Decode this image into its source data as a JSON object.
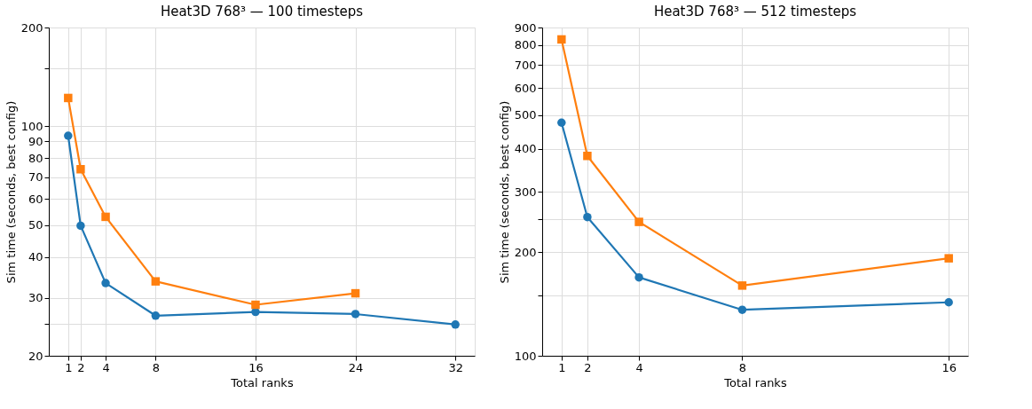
{
  "chart_data": [
    {
      "type": "line",
      "title": "Heat3D 768³ — 100 timesteps",
      "xlabel": "Total ranks",
      "ylabel": "Sim time (seconds, best config)",
      "log": "y",
      "grid": true,
      "line_style": "solid",
      "xlim": [
        -0.55,
        33.55
      ],
      "xticks": [
        1,
        2,
        4,
        8,
        16,
        24,
        32
      ],
      "ylim": [
        20,
        200
      ],
      "yticks": [
        20,
        {
          "value": 25,
          "label": null
        },
        30,
        40,
        50,
        60,
        70,
        80,
        90,
        100,
        {
          "value": 150,
          "label": null
        },
        200
      ],
      "series": [
        {
          "color": "#1f77b4",
          "marker": "circle",
          "x": [
            1,
            2,
            4,
            8,
            16,
            24,
            32
          ],
          "values": [
            93.6,
            49.8,
            33.3,
            26.5,
            27.2,
            26.8,
            24.9
          ]
        },
        {
          "color": "#ff7f0e",
          "marker": "square",
          "x": [
            1,
            2,
            4,
            8,
            16,
            24
          ],
          "values": [
            122,
            74.0,
            53.0,
            33.7,
            28.6,
            31.0
          ]
        }
      ]
    },
    {
      "type": "line",
      "title": "Heat3D 768³ — 512 timesteps",
      "xlabel": "Total ranks",
      "ylabel": "Sim time (seconds, best config)",
      "log": "y",
      "grid": true,
      "line_style": "solid",
      "xlim": [
        0.25,
        16.75
      ],
      "xticks": [
        1,
        2,
        4,
        8,
        16
      ],
      "ylim": [
        100,
        900
      ],
      "yticks": [
        100,
        {
          "value": 150,
          "label": null
        },
        200,
        {
          "value": 250,
          "label": null
        },
        300,
        400,
        500,
        600,
        700,
        800,
        900
      ],
      "series": [
        {
          "color": "#1f77b4",
          "marker": "circle",
          "x": [
            1,
            2,
            4,
            8,
            16
          ],
          "values": [
            476,
            253,
            169,
            136,
            143
          ]
        },
        {
          "color": "#ff7f0e",
          "marker": "square",
          "x": [
            1,
            2,
            4,
            8,
            16
          ],
          "values": [
            831,
            381,
            245,
            160,
            192
          ]
        }
      ]
    }
  ]
}
